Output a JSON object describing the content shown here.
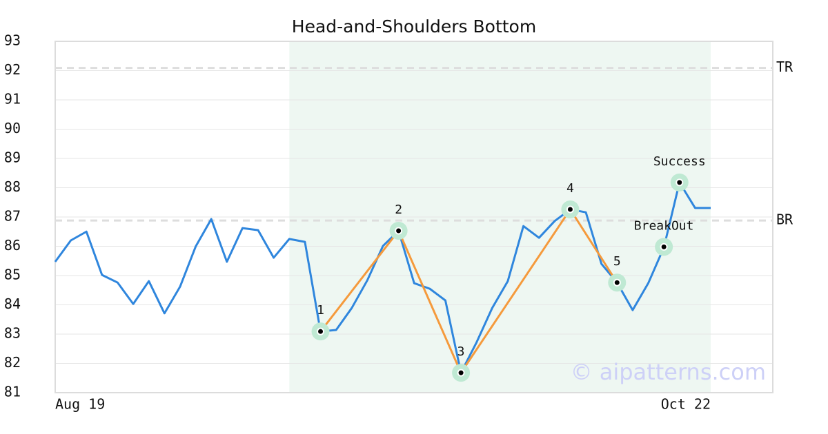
{
  "chart_data": {
    "type": "line",
    "title": "Head-and-Shoulders Bottom",
    "categories": [
      "Aug 19",
      null,
      null,
      null,
      null,
      null,
      null,
      null,
      null,
      null,
      null,
      null,
      null,
      null,
      null,
      null,
      null,
      null,
      null,
      null,
      null,
      null,
      null,
      null,
      null,
      null,
      null,
      null,
      null,
      null,
      null,
      null,
      null,
      null,
      null,
      null,
      null,
      null,
      null,
      null,
      null,
      null,
      "Oct 22"
    ],
    "values": [
      85.47,
      86.2,
      86.5,
      85.02,
      84.76,
      84.03,
      84.81,
      83.71,
      84.62,
      85.99,
      86.93,
      85.47,
      86.62,
      86.55,
      85.61,
      86.25,
      86.15,
      83.09,
      83.14,
      83.89,
      84.84,
      86.01,
      86.53,
      84.74,
      84.55,
      84.15,
      81.68,
      82.72,
      83.89,
      84.81,
      86.69,
      86.29,
      86.86,
      87.26,
      87.16,
      85.4,
      84.76,
      83.82,
      84.74,
      85.96,
      88.18,
      87.31,
      87.31
    ],
    "color": "#2f86dd",
    "ylim": [
      81,
      93
    ],
    "yticks": [
      81,
      82,
      83,
      84,
      85,
      86,
      87,
      88,
      89,
      90,
      91,
      92,
      93
    ],
    "grid": true,
    "pattern_range": [
      15,
      42
    ],
    "pattern_color": "#f59a3c",
    "pattern_points": [
      {
        "label": "1",
        "index": 17,
        "value": 83.09
      },
      {
        "label": "2",
        "index": 22,
        "value": 86.53
      },
      {
        "label": "3",
        "index": 26,
        "value": 81.68
      },
      {
        "label": "4",
        "index": 33,
        "value": 87.26
      },
      {
        "label": "5",
        "index": 36,
        "value": 84.76
      }
    ],
    "signal_points": [
      {
        "label": "BreakOut",
        "index": 39,
        "value": 85.98
      },
      {
        "label": "Success",
        "index": 40,
        "value": 88.18
      }
    ],
    "levels": [
      {
        "label": "TR",
        "value": 92.09
      },
      {
        "label": "BR",
        "value": 86.88
      }
    ],
    "watermark": "© aipatterns.com"
  }
}
